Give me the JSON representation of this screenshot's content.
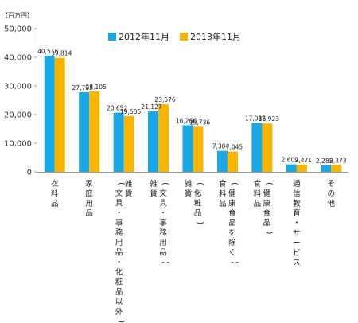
{
  "chart_data": {
    "type": "bar",
    "unit_label": "【百万円】",
    "ylim": [
      0,
      50000
    ],
    "yticks": [
      "0",
      "10,000",
      "20,000",
      "30,000",
      "40,000",
      "50,000"
    ],
    "ytick_values": [
      0,
      10000,
      20000,
      30000,
      40000,
      50000
    ],
    "legend_position": "top",
    "categories": [
      [
        "衣料品"
      ],
      [
        "家庭用品"
      ],
      [
        "(文具・事務用品・化粧品以外)",
        "雑貨"
      ],
      [
        "雑貨",
        "(文具・事務用品)"
      ],
      [
        "雑貨",
        "(化粧品)"
      ],
      [
        "食料品",
        "(健康食品を除く)"
      ],
      [
        "食料品",
        "(健康食品)"
      ],
      [
        "通信教育・サービス"
      ],
      [
        "その他"
      ]
    ],
    "series": [
      {
        "name": "2012年11月",
        "color": "#19a8e6",
        "values": [
          40516,
          27793,
          20652,
          21127,
          16266,
          7304,
          17082,
          2609,
          2285
        ],
        "labels": [
          "40,516",
          "27,793",
          "20,652",
          "21,127",
          "16,266",
          "7,304",
          "17,082",
          "2,609",
          "2,285"
        ]
      },
      {
        "name": "2013年11月",
        "color": "#f7b500",
        "values": [
          39814,
          28105,
          19505,
          23576,
          15736,
          7045,
          16923,
          2471,
          2373
        ],
        "labels": [
          "39,814",
          "28,105",
          "19,505",
          "23,576",
          "15,736",
          "7,045",
          "16,923",
          "2,471",
          "2,373"
        ]
      }
    ]
  }
}
